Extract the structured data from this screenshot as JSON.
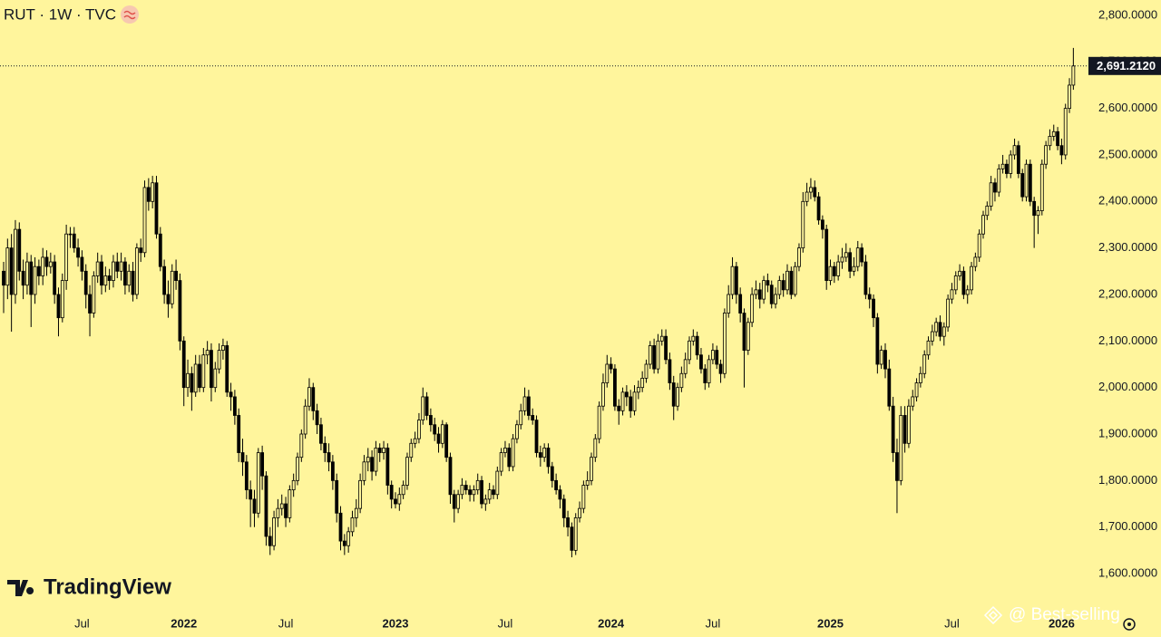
{
  "chart_data": {
    "type": "candlestick",
    "title": "RUT · 1W · TVC",
    "watermark": "TradingView",
    "credit": "@ Best-selling",
    "ylim": [
      1528,
      2833
    ],
    "yticks": [
      {
        "value": 1600,
        "label": "1,600.0000"
      },
      {
        "value": 1700,
        "label": "1,700.0000"
      },
      {
        "value": 1800,
        "label": "1,800.0000"
      },
      {
        "value": 1900,
        "label": "1,900.0000"
      },
      {
        "value": 2000,
        "label": "2,000.0000"
      },
      {
        "value": 2100,
        "label": "2,100.0000"
      },
      {
        "value": 2200,
        "label": "2,200.0000"
      },
      {
        "value": 2300,
        "label": "2,300.0000"
      },
      {
        "value": 2400,
        "label": "2,400.0000"
      },
      {
        "value": 2500,
        "label": "2,500.0000"
      },
      {
        "value": 2600,
        "label": "2,600.0000"
      },
      {
        "value": 2700,
        "label": "2,700.0000"
      },
      {
        "value": 2800,
        "label": "2,800.0000"
      }
    ],
    "xticks": [
      {
        "value": 20,
        "label": "Jul"
      },
      {
        "value": 46,
        "label": "2022"
      },
      {
        "value": 72,
        "label": "Jul"
      },
      {
        "value": 100,
        "label": "2023"
      },
      {
        "value": 128,
        "label": "Jul"
      },
      {
        "value": 155,
        "label": "2024"
      },
      {
        "value": 181,
        "label": "Jul"
      },
      {
        "value": 211,
        "label": "2025"
      },
      {
        "value": 242,
        "label": "Jul"
      },
      {
        "value": 270,
        "label": "2026"
      }
    ],
    "last_price": {
      "value": 2691.212,
      "label": "2,691.2120"
    },
    "up_color": "#fff59c",
    "down_color": "#000000",
    "wick_color": "#000000",
    "open": [
      2250,
      2220,
      2300,
      2200,
      2340,
      2250,
      2220,
      2270,
      2200,
      2260,
      2240,
      2280,
      2260,
      2270,
      2200,
      2150,
      2230,
      2330,
      2330,
      2300,
      2280,
      2250,
      2200,
      2160,
      2240,
      2270,
      2220,
      2240,
      2230,
      2270,
      2250,
      2270,
      2220,
      2250,
      2200,
      2300,
      2290,
      2430,
      2400,
      2440,
      2330,
      2260,
      2200,
      2180,
      2250,
      2230,
      2100,
      2000,
      2030,
      1990,
      2050,
      2000,
      2070,
      2080,
      2000,
      2040,
      2080,
      2090,
      1990,
      1980,
      1940,
      1860,
      1840,
      1780,
      1760,
      1730,
      1860,
      1810,
      1680,
      1660,
      1720,
      1740,
      1750,
      1720,
      1780,
      1800,
      1850,
      1900,
      1960,
      2000,
      1950,
      1920,
      1880,
      1860,
      1840,
      1800,
      1730,
      1670,
      1660,
      1690,
      1720,
      1740,
      1800,
      1840,
      1850,
      1820,
      1870,
      1860,
      1870,
      1790,
      1760,
      1750,
      1770,
      1790,
      1850,
      1880,
      1890,
      1930,
      1980,
      1940,
      1920,
      1900,
      1880,
      1920,
      1850,
      1770,
      1740,
      1770,
      1790,
      1780,
      1770,
      1780,
      1800,
      1750,
      1760,
      1780,
      1770,
      1820,
      1860,
      1870,
      1830,
      1890,
      1920,
      1950,
      1980,
      1940,
      1930,
      1860,
      1850,
      1870,
      1830,
      1800,
      1780,
      1760,
      1720,
      1700,
      1650,
      1720,
      1740,
      1790,
      1800,
      1850,
      1890,
      1960,
      2010,
      2050,
      2040,
      1960,
      1950,
      1990,
      1980,
      1950,
      1990,
      2000,
      2020,
      2050,
      2090,
      2040,
      2100,
      2110,
      2060,
      2010,
      1960,
      2000,
      2030,
      2060,
      2100,
      2110,
      2070,
      2040,
      2010,
      2060,
      2080,
      2050,
      2030,
      2160,
      2200,
      2260,
      2200,
      2160,
      2080,
      2140,
      2200,
      2210,
      2190,
      2230,
      2220,
      2180,
      2200,
      2230,
      2210,
      2250,
      2200,
      2260,
      2300,
      2400,
      2420,
      2430,
      2410,
      2360,
      2340,
      2230,
      2260,
      2240,
      2270,
      2280,
      2290,
      2250,
      2260,
      2300,
      2270,
      2200,
      2190,
      2150,
      2050,
      2080,
      2040,
      1960,
      1860,
      1800,
      1940,
      1880,
      1960,
      1980,
      2010,
      2030,
      2070,
      2100,
      2120,
      2140,
      2110,
      2130,
      2190,
      2210,
      2240,
      2250,
      2200,
      2210,
      2260,
      2280,
      2330,
      2370,
      2390,
      2440,
      2420,
      2470,
      2480,
      2460,
      2500,
      2520,
      2460,
      2410,
      2480,
      2400,
      2370,
      2380,
      2480,
      2520,
      2540,
      2550,
      2520,
      2500,
      2600,
      2650
    ],
    "high": [
      2270,
      2320,
      2330,
      2360,
      2355,
      2275,
      2290,
      2285,
      2280,
      2275,
      2300,
      2295,
      2290,
      2285,
      2215,
      2245,
      2350,
      2345,
      2345,
      2320,
      2295,
      2265,
      2220,
      2250,
      2290,
      2285,
      2260,
      2255,
      2285,
      2290,
      2290,
      2280,
      2265,
      2270,
      2310,
      2320,
      2445,
      2450,
      2455,
      2455,
      2345,
      2275,
      2230,
      2265,
      2275,
      2245,
      2110,
      2060,
      2045,
      2070,
      2070,
      2085,
      2100,
      2095,
      2055,
      2095,
      2105,
      2100,
      2010,
      1995,
      1955,
      1890,
      1855,
      1800,
      1780,
      1870,
      1875,
      1820,
      1700,
      1735,
      1760,
      1770,
      1765,
      1790,
      1815,
      1860,
      1910,
      1975,
      2020,
      2010,
      1965,
      1935,
      1895,
      1880,
      1855,
      1815,
      1745,
      1685,
      1700,
      1735,
      1760,
      1815,
      1855,
      1870,
      1865,
      1885,
      1880,
      1885,
      1880,
      1800,
      1775,
      1785,
      1800,
      1860,
      1890,
      1905,
      1945,
      2000,
      1990,
      1955,
      1935,
      1915,
      1930,
      1925,
      1860,
      1780,
      1780,
      1805,
      1800,
      1790,
      1790,
      1815,
      1810,
      1770,
      1795,
      1790,
      1830,
      1870,
      1885,
      1880,
      1900,
      1930,
      1965,
      2000,
      1995,
      1955,
      1940,
      1875,
      1880,
      1880,
      1840,
      1815,
      1790,
      1770,
      1735,
      1710,
      1730,
      1755,
      1800,
      1820,
      1860,
      1900,
      1970,
      2030,
      2070,
      2065,
      2050,
      1975,
      2000,
      2005,
      1995,
      2005,
      2015,
      2035,
      2060,
      2100,
      2105,
      2115,
      2125,
      2125,
      2075,
      2025,
      2010,
      2045,
      2075,
      2110,
      2125,
      2120,
      2085,
      2050,
      2070,
      2095,
      2090,
      2060,
      2170,
      2220,
      2280,
      2270,
      2215,
      2170,
      2150,
      2215,
      2230,
      2225,
      2240,
      2245,
      2230,
      2215,
      2240,
      2245,
      2265,
      2260,
      2270,
      2310,
      2420,
      2440,
      2450,
      2445,
      2420,
      2370,
      2350,
      2275,
      2270,
      2285,
      2300,
      2310,
      2300,
      2280,
      2315,
      2310,
      2285,
      2215,
      2200,
      2160,
      2090,
      2095,
      2060,
      1980,
      1890,
      1960,
      1960,
      1975,
      1995,
      2020,
      2045,
      2080,
      2110,
      2135,
      2150,
      2155,
      2140,
      2200,
      2225,
      2250,
      2265,
      2260,
      2220,
      2270,
      2290,
      2340,
      2380,
      2400,
      2455,
      2450,
      2480,
      2500,
      2490,
      2510,
      2535,
      2530,
      2470,
      2490,
      2490,
      2410,
      2390,
      2490,
      2530,
      2555,
      2565,
      2560,
      2535,
      2610,
      2665,
      2730
    ],
    "low": [
      2160,
      2190,
      2120,
      2180,
      2230,
      2190,
      2200,
      2130,
      2180,
      2220,
      2220,
      2240,
      2245,
      2180,
      2110,
      2140,
      2210,
      2300,
      2290,
      2260,
      2230,
      2170,
      2110,
      2150,
      2225,
      2200,
      2205,
      2210,
      2215,
      2235,
      2230,
      2200,
      2205,
      2185,
      2190,
      2270,
      2280,
      2380,
      2385,
      2320,
      2250,
      2180,
      2150,
      2170,
      2210,
      2080,
      1960,
      1980,
      1950,
      1980,
      1990,
      1990,
      2050,
      1970,
      1990,
      2030,
      2060,
      1980,
      1950,
      1920,
      1840,
      1810,
      1760,
      1700,
      1700,
      1720,
      1780,
      1660,
      1640,
      1650,
      1700,
      1725,
      1700,
      1710,
      1765,
      1790,
      1840,
      1890,
      1950,
      1930,
      1900,
      1865,
      1840,
      1820,
      1780,
      1710,
      1650,
      1640,
      1645,
      1680,
      1700,
      1730,
      1790,
      1820,
      1800,
      1810,
      1840,
      1845,
      1770,
      1740,
      1740,
      1735,
      1760,
      1780,
      1840,
      1870,
      1880,
      1920,
      1930,
      1905,
      1885,
      1860,
      1870,
      1840,
      1750,
      1710,
      1730,
      1760,
      1770,
      1755,
      1755,
      1770,
      1740,
      1735,
      1750,
      1760,
      1760,
      1810,
      1850,
      1820,
      1820,
      1880,
      1910,
      1940,
      1930,
      1920,
      1850,
      1830,
      1840,
      1815,
      1785,
      1770,
      1740,
      1700,
      1680,
      1635,
      1640,
      1710,
      1730,
      1780,
      1790,
      1840,
      1880,
      1950,
      2000,
      2030,
      1950,
      1920,
      1940,
      1960,
      1935,
      1940,
      1975,
      1990,
      2010,
      2040,
      2030,
      2030,
      2090,
      2050,
      1995,
      1930,
      1950,
      1990,
      2020,
      2050,
      2090,
      2060,
      2030,
      1995,
      2000,
      2050,
      2040,
      2010,
      2020,
      2150,
      2190,
      2180,
      2140,
      2000,
      2070,
      2130,
      2190,
      2170,
      2180,
      2205,
      2170,
      2170,
      2190,
      2195,
      2200,
      2190,
      2195,
      2250,
      2290,
      2390,
      2405,
      2400,
      2350,
      2320,
      2210,
      2220,
      2225,
      2230,
      2255,
      2270,
      2235,
      2240,
      2250,
      2260,
      2190,
      2170,
      2130,
      2030,
      2040,
      2020,
      1950,
      1840,
      1730,
      1790,
      1860,
      1870,
      1950,
      1970,
      2000,
      2020,
      2060,
      2090,
      2110,
      2100,
      2090,
      2120,
      2180,
      2200,
      2230,
      2190,
      2180,
      2200,
      2250,
      2270,
      2320,
      2360,
      2380,
      2400,
      2410,
      2460,
      2450,
      2450,
      2490,
      2450,
      2400,
      2400,
      2390,
      2300,
      2330,
      2370,
      2470,
      2510,
      2530,
      2510,
      2480,
      2490,
      2590,
      2640
    ],
    "close": [
      2220,
      2300,
      2200,
      2340,
      2250,
      2220,
      2270,
      2200,
      2260,
      2240,
      2280,
      2260,
      2270,
      2200,
      2150,
      2230,
      2330,
      2330,
      2300,
      2280,
      2250,
      2200,
      2160,
      2240,
      2270,
      2220,
      2240,
      2230,
      2270,
      2250,
      2270,
      2220,
      2250,
      2200,
      2300,
      2290,
      2430,
      2400,
      2440,
      2330,
      2260,
      2200,
      2180,
      2250,
      2230,
      2100,
      2000,
      2030,
      1990,
      2050,
      2000,
      2070,
      2080,
      2000,
      2040,
      2080,
      2090,
      1990,
      1980,
      1940,
      1860,
      1840,
      1780,
      1760,
      1730,
      1860,
      1810,
      1680,
      1660,
      1720,
      1740,
      1750,
      1720,
      1780,
      1800,
      1850,
      1900,
      1960,
      2000,
      1950,
      1920,
      1880,
      1860,
      1840,
      1800,
      1730,
      1670,
      1660,
      1690,
      1720,
      1740,
      1800,
      1840,
      1850,
      1820,
      1870,
      1860,
      1870,
      1790,
      1760,
      1750,
      1770,
      1790,
      1850,
      1880,
      1890,
      1930,
      1980,
      1940,
      1920,
      1900,
      1880,
      1920,
      1850,
      1770,
      1740,
      1770,
      1790,
      1780,
      1770,
      1780,
      1800,
      1750,
      1760,
      1780,
      1770,
      1820,
      1860,
      1870,
      1830,
      1890,
      1920,
      1950,
      1980,
      1940,
      1930,
      1860,
      1850,
      1870,
      1830,
      1800,
      1780,
      1760,
      1720,
      1700,
      1650,
      1720,
      1740,
      1790,
      1800,
      1850,
      1890,
      1960,
      2010,
      2050,
      2040,
      1960,
      1950,
      1990,
      1980,
      1950,
      1990,
      2000,
      2020,
      2050,
      2090,
      2040,
      2100,
      2110,
      2060,
      2010,
      1960,
      2000,
      2030,
      2060,
      2100,
      2110,
      2070,
      2040,
      2010,
      2060,
      2080,
      2050,
      2030,
      2160,
      2200,
      2260,
      2200,
      2160,
      2080,
      2140,
      2200,
      2210,
      2190,
      2230,
      2220,
      2180,
      2200,
      2230,
      2210,
      2250,
      2200,
      2260,
      2300,
      2400,
      2420,
      2430,
      2410,
      2360,
      2340,
      2230,
      2260,
      2240,
      2270,
      2280,
      2290,
      2250,
      2260,
      2300,
      2270,
      2200,
      2190,
      2150,
      2050,
      2080,
      2040,
      1960,
      1860,
      1800,
      1940,
      1880,
      1960,
      1980,
      2010,
      2030,
      2070,
      2100,
      2120,
      2140,
      2110,
      2130,
      2190,
      2210,
      2240,
      2250,
      2200,
      2210,
      2260,
      2280,
      2330,
      2370,
      2390,
      2440,
      2420,
      2470,
      2480,
      2460,
      2500,
      2520,
      2460,
      2410,
      2480,
      2400,
      2370,
      2380,
      2480,
      2520,
      2540,
      2550,
      2520,
      2500,
      2600,
      2650,
      2691.212
    ]
  }
}
